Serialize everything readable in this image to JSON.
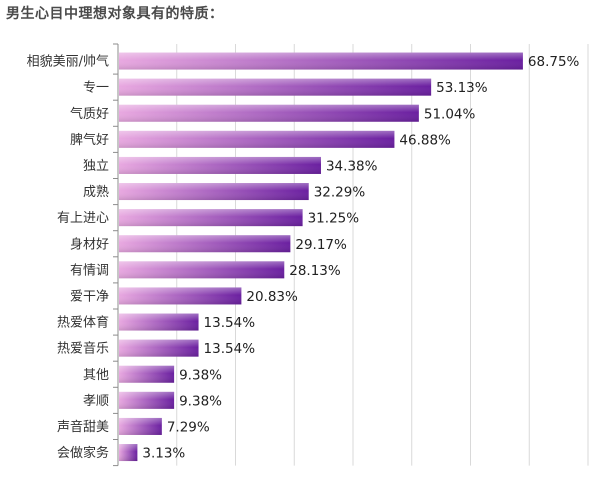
{
  "chart_data": {
    "type": "bar",
    "orientation": "horizontal",
    "title": "男生心目中理想对象具有的特质：",
    "categories": [
      "相貌美丽/帅气",
      "专一",
      "气质好",
      "脾气好",
      "独立",
      "成熟",
      "有上进心",
      "身材好",
      "有情调",
      "爱干净",
      "热爱体育",
      "热爱音乐",
      "其他",
      "孝顺",
      "声音甜美",
      "会做家务"
    ],
    "values": [
      68.75,
      53.13,
      51.04,
      46.88,
      34.38,
      32.29,
      31.25,
      29.17,
      28.13,
      20.83,
      13.54,
      13.54,
      9.38,
      9.38,
      7.29,
      3.13
    ],
    "value_labels": [
      "68.75%",
      "53.13%",
      "51.04%",
      "46.88%",
      "34.38%",
      "32.29%",
      "31.25%",
      "29.17%",
      "28.13%",
      "20.83%",
      "13.54%",
      "13.54%",
      "9.38%",
      "9.38%",
      "7.29%",
      "3.13%"
    ],
    "xlabel": "",
    "ylabel": "",
    "xlim": [
      0,
      80
    ],
    "grid": "vertical",
    "legend": "none",
    "colors": {
      "bar_light": "#e8a8e0",
      "bar_dark": "#6a1fa0",
      "grid": "#d9d9d9",
      "axis": "#8c8c8c"
    }
  }
}
